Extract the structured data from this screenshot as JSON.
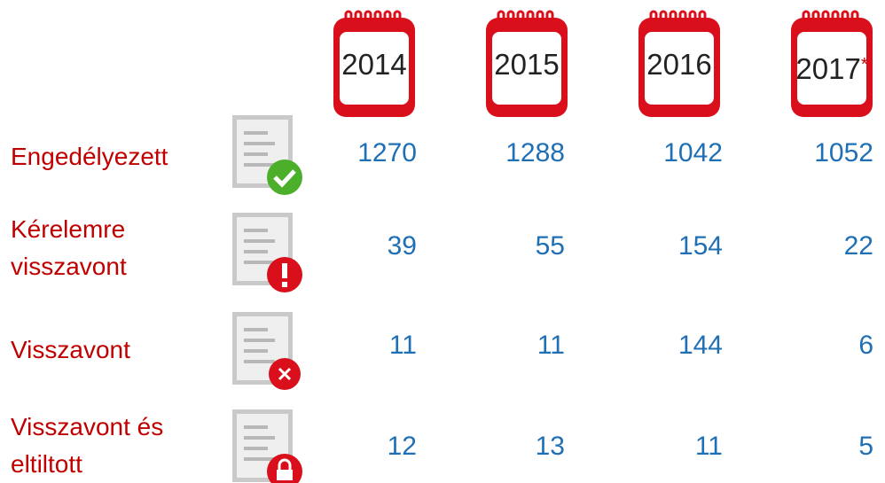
{
  "header": {
    "columns": [
      {
        "year": "2014"
      },
      {
        "year": "2015"
      },
      {
        "year": "2016"
      },
      {
        "year": "2017",
        "mark": "*"
      }
    ]
  },
  "table": {
    "rows": [
      {
        "label": "Engedélyezett",
        "values": [
          "1270",
          "1288",
          "1042",
          "1052"
        ]
      },
      {
        "label": "Kérelemre visszavont",
        "values": [
          "39",
          "55",
          "154",
          "22"
        ]
      },
      {
        "label": "Visszavont",
        "values": [
          "11",
          "11",
          "144",
          "6"
        ]
      },
      {
        "label": "Visszavont és eltiltott",
        "values": [
          "12",
          "13",
          "11",
          "5"
        ]
      }
    ]
  }
}
